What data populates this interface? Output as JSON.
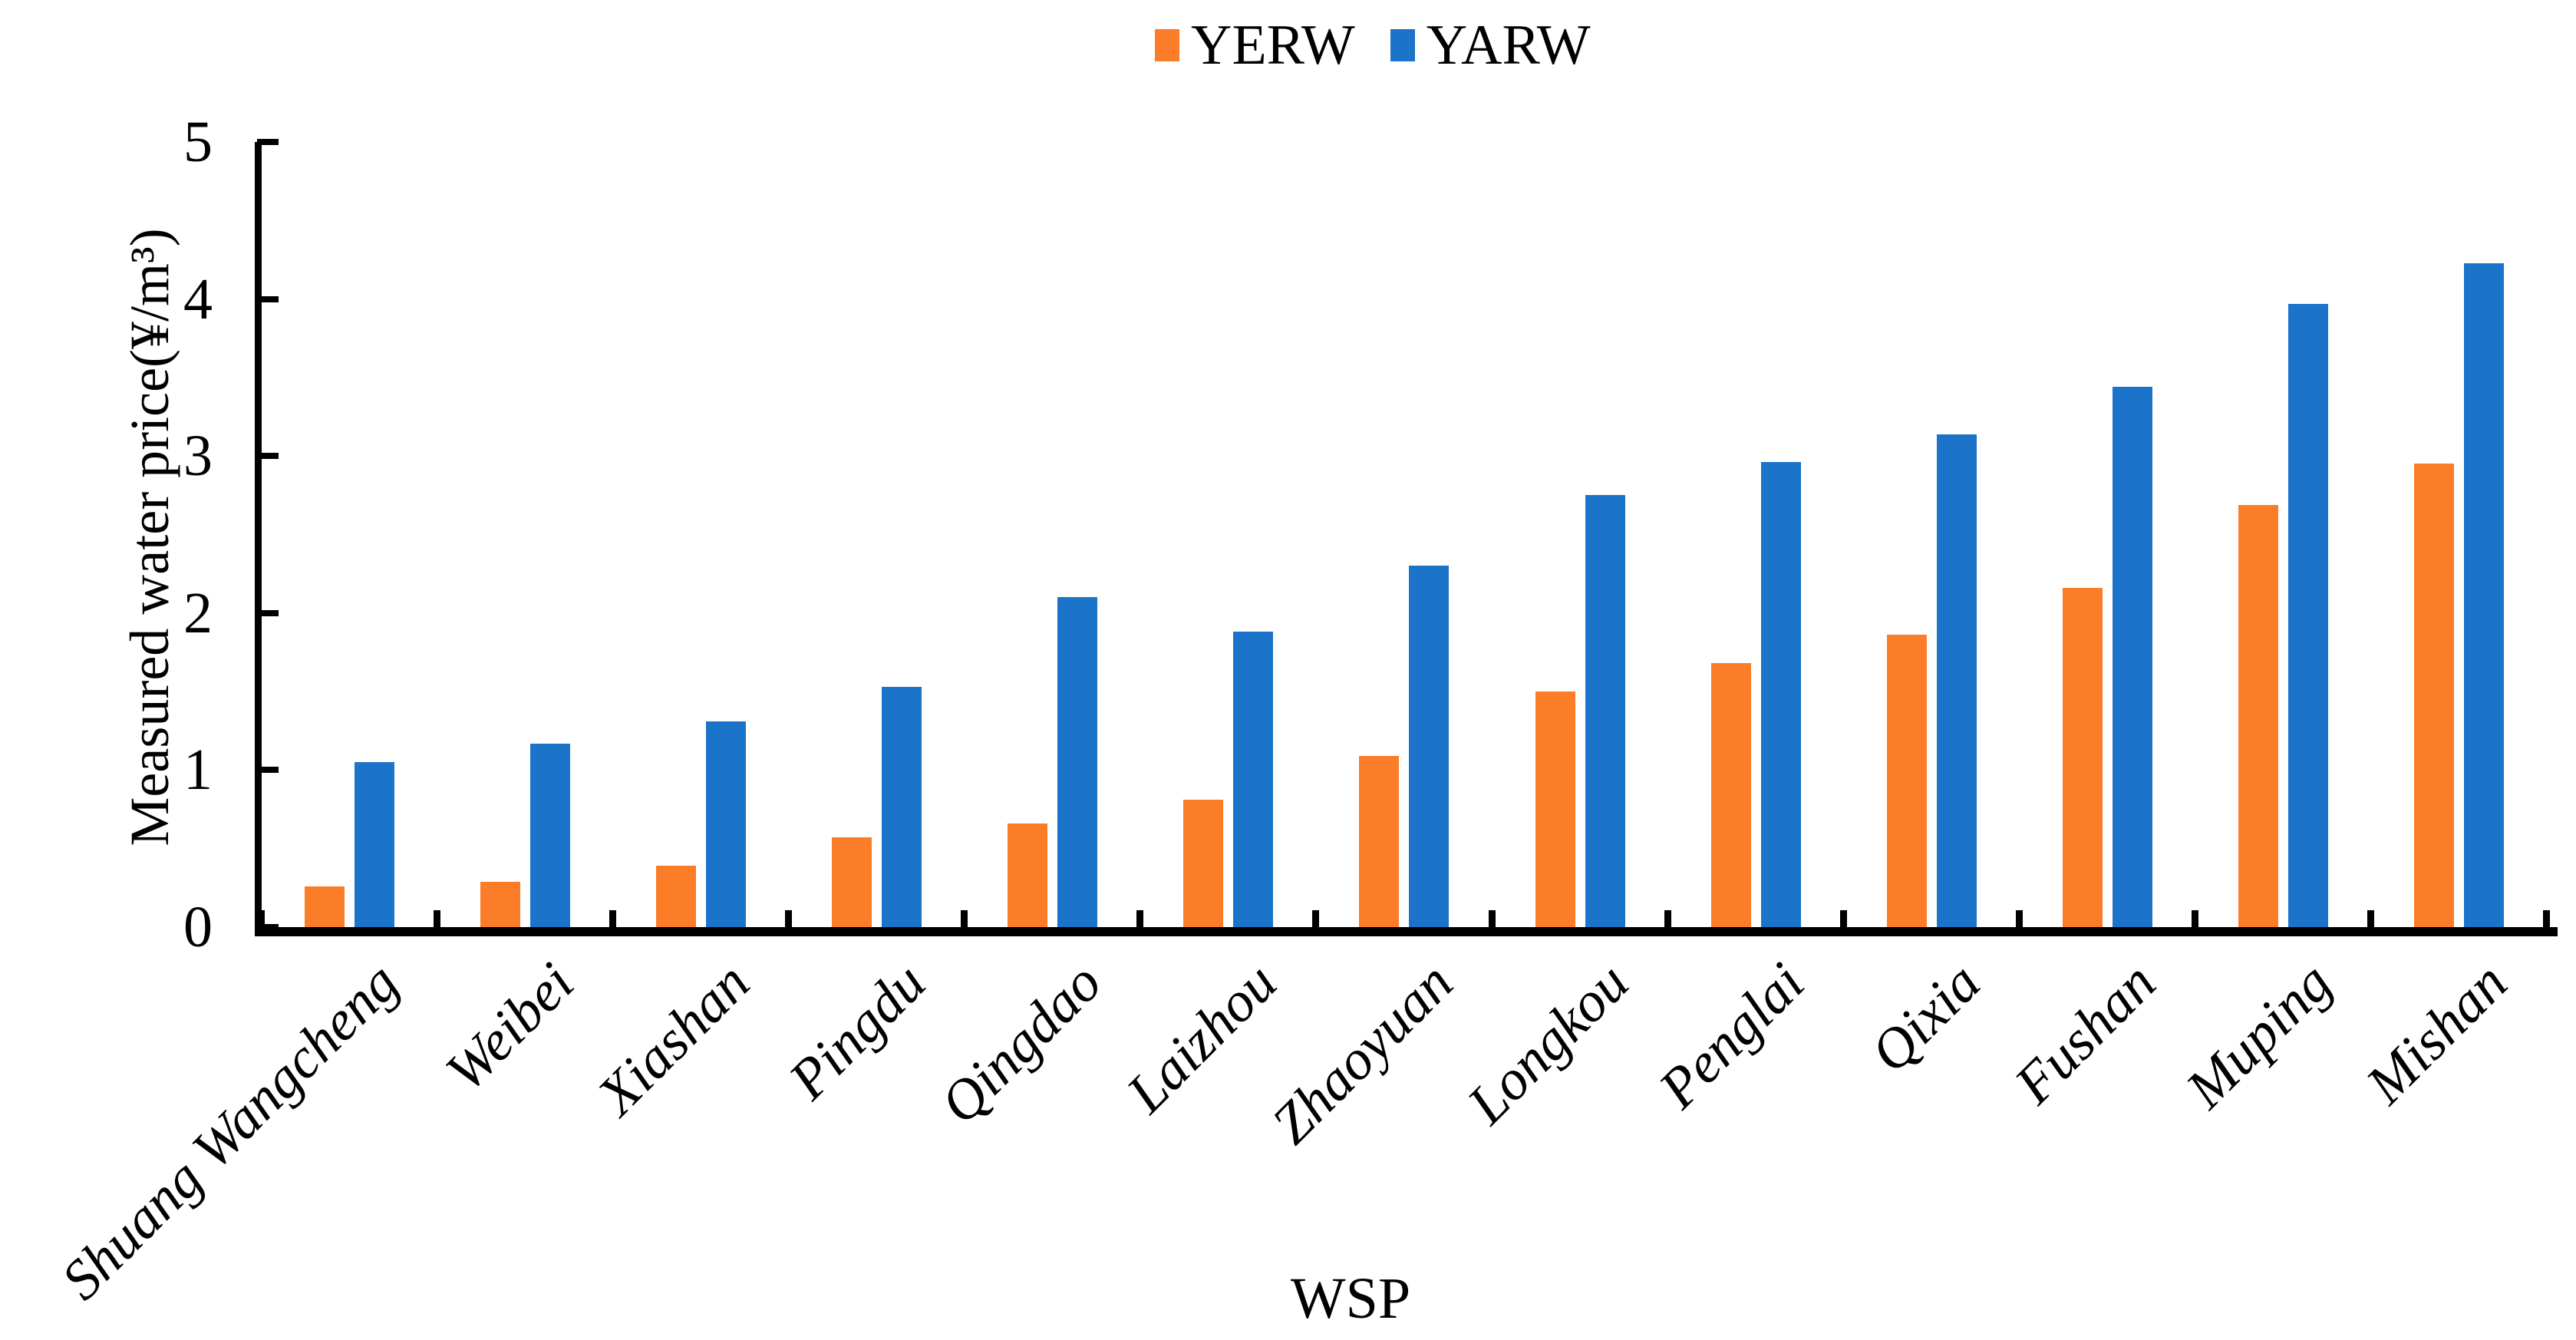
{
  "chart_data": {
    "type": "bar",
    "title": "",
    "xlabel": "WSP",
    "ylabel": "Measured water price(¥/m³)",
    "ylim": [
      0,
      5
    ],
    "yticks": [
      0,
      1,
      2,
      3,
      4,
      5
    ],
    "grid": false,
    "legend_position": "top-center",
    "categories": [
      "Shuang Wangcheng",
      "Weibei",
      "Xiashan",
      "Pingdu",
      "Qingdao",
      "Laizhou",
      "Zhaoyuan",
      "Longkou",
      "Penglai",
      "Qixia",
      "Fushan",
      "Muping",
      "Mishan"
    ],
    "series": [
      {
        "name": "YERW",
        "color": "#FB7D27",
        "values": [
          0.26,
          0.29,
          0.39,
          0.57,
          0.66,
          0.81,
          1.09,
          1.5,
          1.68,
          1.86,
          2.16,
          2.69,
          2.95
        ]
      },
      {
        "name": "YARW",
        "color": "#1B74C9",
        "values": [
          1.05,
          1.17,
          1.31,
          1.53,
          2.1,
          1.88,
          2.3,
          2.75,
          2.96,
          3.14,
          3.44,
          3.97,
          4.23
        ]
      }
    ]
  }
}
